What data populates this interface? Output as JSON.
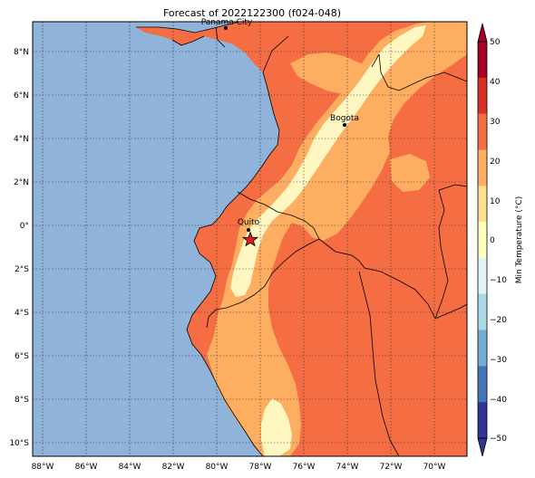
{
  "title": "Forecast of 2022122300 (f024-048)",
  "map": {
    "lon_range": [
      -88.5,
      -68.5
    ],
    "lat_range": [
      -10.5,
      9.5
    ],
    "lat_ticks": [
      "8°N",
      "6°N",
      "4°N",
      "2°N",
      "0°",
      "2°S",
      "4°S",
      "6°S",
      "8°S",
      "10°S"
    ],
    "lon_ticks": [
      "88°W",
      "86°W",
      "84°W",
      "82°W",
      "80°W",
      "78°W",
      "76°W",
      "74°W",
      "72°W",
      "70°W"
    ],
    "grid": true,
    "cities": [
      {
        "name": "Panama City",
        "lon": -79.5,
        "lat": 9.0
      },
      {
        "name": "Bogota",
        "lon": -74.1,
        "lat": 4.6
      },
      {
        "name": "Quito",
        "lon": -78.5,
        "lat": -0.2
      }
    ],
    "star_marker": {
      "lon": -78.5,
      "lat": -0.7
    }
  },
  "colorbar": {
    "label": "Min Temperature (°C)",
    "ticks": [
      "50",
      "40",
      "30",
      "20",
      "10",
      "0",
      "−10",
      "−20",
      "−30",
      "−40",
      "−50"
    ],
    "bands": [
      {
        "color": "#a50026"
      },
      {
        "color": "#d73027"
      },
      {
        "color": "#f46d43"
      },
      {
        "color": "#fdae61"
      },
      {
        "color": "#fee090"
      },
      {
        "color": "#ffffbf"
      },
      {
        "color": "#e0f3f8"
      },
      {
        "color": "#abd9e9"
      },
      {
        "color": "#74add1"
      },
      {
        "color": "#4575b4"
      },
      {
        "color": "#313695"
      }
    ]
  },
  "colors": {
    "ocean": "#8fb3d9",
    "band_20_30": "#f46d43",
    "band_10_20": "#fdae61",
    "band_0_10": "#fff7c2",
    "border": "#000000"
  }
}
